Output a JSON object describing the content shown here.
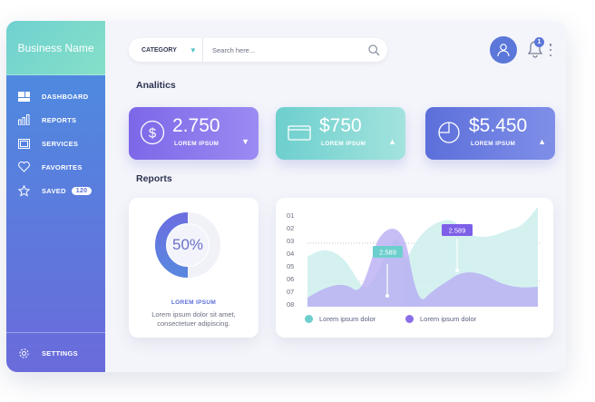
{
  "sidebar": {
    "brand": "Business Name",
    "items": [
      {
        "label": "DASHBOARD",
        "icon": "dashboard-icon"
      },
      {
        "label": "REPORTS",
        "icon": "bar-chart-icon"
      },
      {
        "label": "SERVICES",
        "icon": "services-icon"
      },
      {
        "label": "FAVORITES",
        "icon": "heart-icon"
      },
      {
        "label": "SAVED",
        "icon": "star-icon",
        "badge": "120"
      }
    ],
    "settings_label": "SETTINGS"
  },
  "header": {
    "category_label": "CATEGORY",
    "search_placeholder": "Search here...",
    "notification_count": "1"
  },
  "analytics": {
    "title": "Analitics",
    "cards": [
      {
        "value": "2.750",
        "label": "LOREM IPSUM",
        "icon": "dollar-icon",
        "trend": "down"
      },
      {
        "value": "$750",
        "label": "LOREM IPSUM",
        "icon": "card-icon",
        "trend": "up"
      },
      {
        "value": "$5.450",
        "label": "LOREM IPSUM",
        "icon": "pie-icon",
        "trend": "up"
      }
    ]
  },
  "reports": {
    "title": "Reports",
    "donut": {
      "value_text": "50%",
      "percent": 50,
      "label": "LOREM IPSUM",
      "description": "Lorem ipsum dolor sit amet, consectetuer adipiscing."
    },
    "legend": [
      "Lorem ipsum dolor",
      "Lorem ipsum dolor"
    ]
  },
  "colors": {
    "teal": "#6dcfcd",
    "purple": "#8b6fe8",
    "blue": "#5b77d9"
  },
  "chart_data": {
    "type": "area",
    "y_tick_labels": [
      "01",
      "02",
      "03",
      "04",
      "05",
      "06",
      "07",
      "08"
    ],
    "series": [
      {
        "name": "Lorem ipsum dolor",
        "color": "#8fd9d4"
      },
      {
        "name": "Lorem ipsum dolor",
        "color": "#9d8ff0"
      }
    ],
    "annotations": [
      "2.589",
      "2.589"
    ]
  }
}
